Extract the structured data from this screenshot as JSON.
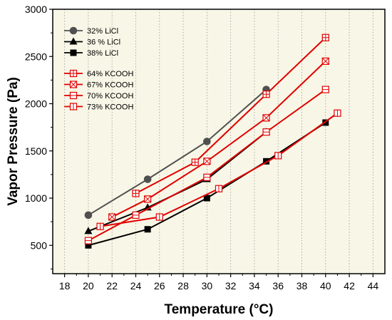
{
  "chart_data": {
    "type": "line",
    "xlabel": "Temperature (°C)",
    "ylabel": "Vapor Pressure (Pa)",
    "xlim": [
      17,
      45
    ],
    "ylim": [
      200,
      3000
    ],
    "xticks": [
      18,
      20,
      22,
      24,
      26,
      28,
      30,
      32,
      34,
      36,
      38,
      40,
      42,
      44
    ],
    "yticks": [
      500,
      1000,
      1500,
      2000,
      2500,
      3000
    ],
    "grid": "vertical dotted",
    "legend_position": "top-left",
    "background_color": "#f8f6e6",
    "series": [
      {
        "name": "32% LiCl",
        "color": "#505050",
        "marker": "circle",
        "x": [
          20,
          25,
          30,
          35
        ],
        "y": [
          820,
          1200,
          1600,
          2150
        ]
      },
      {
        "name": "36 % LiCl",
        "color": "#000000",
        "marker": "triangle",
        "x": [
          20,
          25,
          30,
          35
        ],
        "y": [
          650,
          900,
          1200,
          1700
        ]
      },
      {
        "name": "38% LiCl",
        "color": "#000000",
        "marker": "square",
        "x": [
          20,
          25,
          30,
          35,
          40
        ],
        "y": [
          500,
          670,
          1000,
          1390,
          1800
        ]
      },
      {
        "name": "64% KCOOH",
        "color": "#e00000",
        "marker": "square-plus",
        "x": [
          24,
          29,
          35,
          40
        ],
        "y": [
          1050,
          1380,
          2100,
          2700
        ]
      },
      {
        "name": "67% KCOOH",
        "color": "#e00000",
        "marker": "square-x",
        "x": [
          22,
          25,
          30,
          35,
          40
        ],
        "y": [
          800,
          990,
          1390,
          1850,
          2450
        ]
      },
      {
        "name": "70% KCOOH",
        "color": "#e00000",
        "marker": "square-hline",
        "x": [
          20,
          24,
          30,
          35,
          40
        ],
        "y": [
          550,
          820,
          1220,
          1700,
          2150
        ]
      },
      {
        "name": "73% KCOOH",
        "color": "#e00000",
        "marker": "square-vline",
        "x": [
          21,
          26,
          31,
          36,
          41
        ],
        "y": [
          700,
          800,
          1100,
          1450,
          1900
        ]
      }
    ]
  }
}
